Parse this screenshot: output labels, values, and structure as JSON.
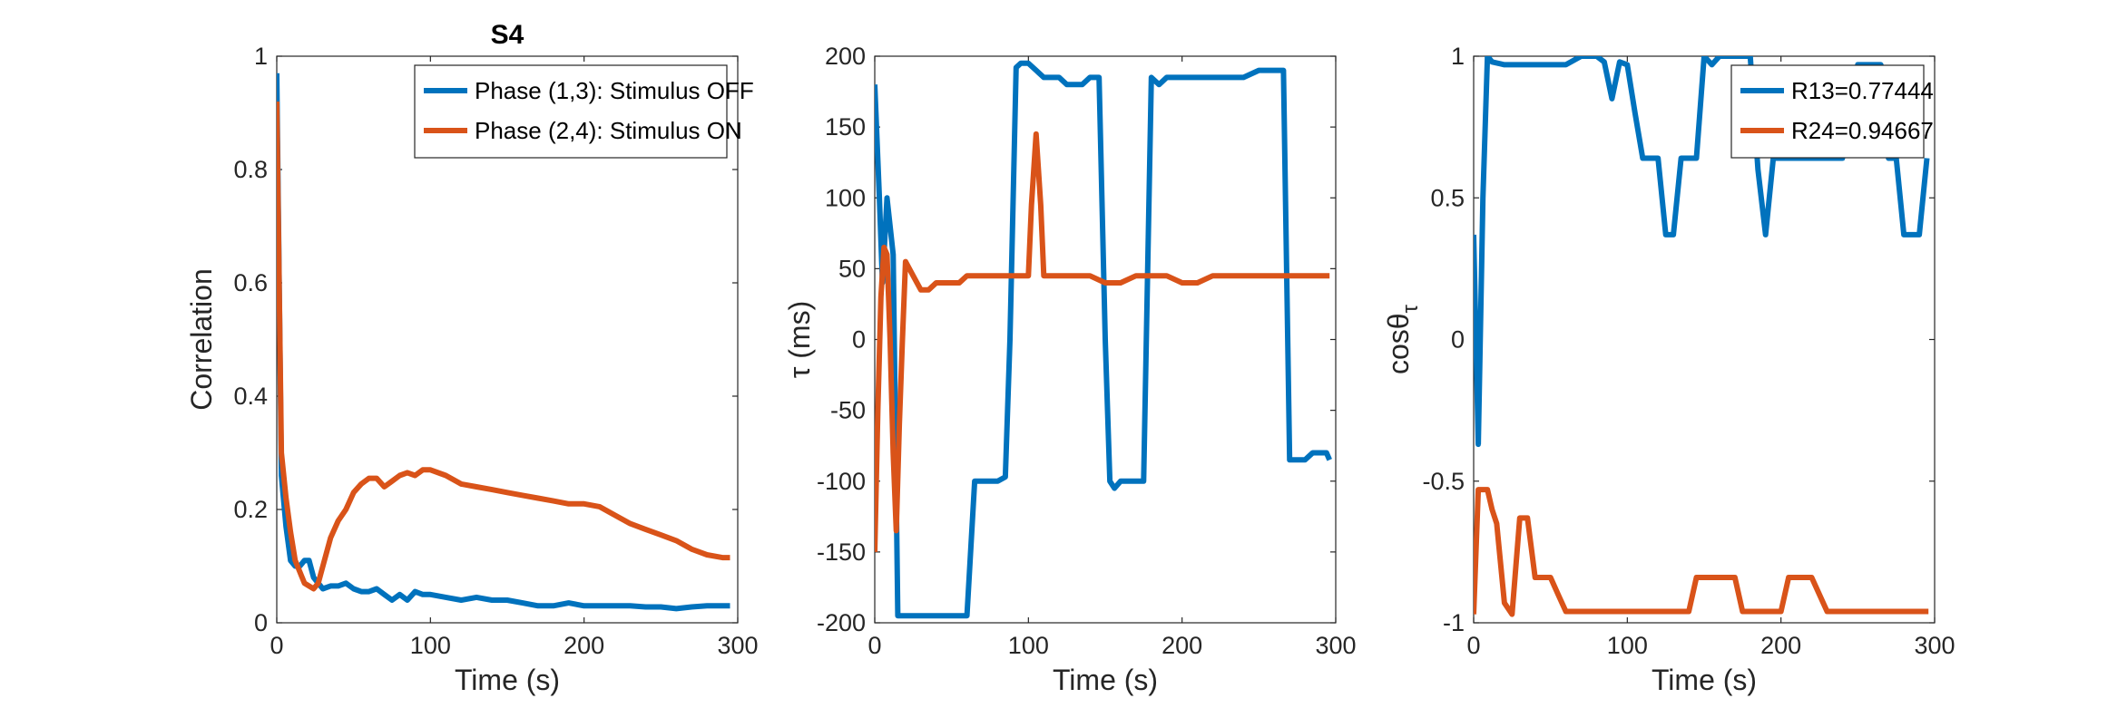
{
  "chart_data": [
    {
      "type": "line",
      "title": "S4",
      "xlabel": "Time (s)",
      "ylabel": "Correlation",
      "xlim": [
        0,
        300
      ],
      "ylim": [
        0,
        1
      ],
      "xticks": [
        0,
        100,
        200,
        300
      ],
      "yticks": [
        0,
        0.2,
        0.4,
        0.6,
        0.8,
        1
      ],
      "ytick_labels": [
        "0",
        "0.2",
        "0.4",
        "0.6",
        "0.8",
        "1"
      ],
      "legend_position": "top-right",
      "series": [
        {
          "name": "Phase (1,3): Stimulus OFF",
          "color": "#0072BD",
          "x": [
            0,
            3,
            6,
            9,
            12,
            15,
            18,
            21,
            24,
            27,
            30,
            35,
            40,
            45,
            50,
            55,
            60,
            65,
            70,
            75,
            80,
            85,
            90,
            95,
            100,
            110,
            120,
            130,
            140,
            150,
            160,
            170,
            180,
            190,
            200,
            210,
            220,
            230,
            240,
            250,
            260,
            270,
            280,
            290,
            295
          ],
          "y": [
            0.97,
            0.26,
            0.17,
            0.11,
            0.1,
            0.1,
            0.11,
            0.11,
            0.08,
            0.07,
            0.06,
            0.065,
            0.065,
            0.07,
            0.06,
            0.055,
            0.055,
            0.06,
            0.05,
            0.04,
            0.05,
            0.04,
            0.055,
            0.05,
            0.05,
            0.045,
            0.04,
            0.045,
            0.04,
            0.04,
            0.035,
            0.03,
            0.03,
            0.035,
            0.03,
            0.03,
            0.03,
            0.03,
            0.028,
            0.028,
            0.025,
            0.028,
            0.03,
            0.03,
            0.03
          ]
        },
        {
          "name": "Phase (2,4): Stimulus ON",
          "color": "#D95319",
          "x": [
            0,
            3,
            6,
            9,
            12,
            15,
            18,
            21,
            24,
            27,
            30,
            35,
            40,
            45,
            50,
            55,
            60,
            65,
            70,
            75,
            80,
            85,
            90,
            95,
            100,
            110,
            120,
            130,
            140,
            150,
            160,
            170,
            180,
            190,
            200,
            210,
            220,
            230,
            240,
            250,
            260,
            270,
            280,
            290,
            295
          ],
          "y": [
            0.92,
            0.3,
            0.22,
            0.16,
            0.11,
            0.09,
            0.07,
            0.065,
            0.06,
            0.07,
            0.1,
            0.15,
            0.18,
            0.2,
            0.23,
            0.245,
            0.255,
            0.255,
            0.24,
            0.25,
            0.26,
            0.265,
            0.26,
            0.27,
            0.27,
            0.26,
            0.245,
            0.24,
            0.235,
            0.23,
            0.225,
            0.22,
            0.215,
            0.21,
            0.21,
            0.205,
            0.19,
            0.175,
            0.165,
            0.155,
            0.145,
            0.13,
            0.12,
            0.115,
            0.115
          ]
        }
      ]
    },
    {
      "type": "line",
      "xlabel": "Time (s)",
      "ylabel": "τ (ms)",
      "xlim": [
        0,
        300
      ],
      "ylim": [
        -200,
        200
      ],
      "xticks": [
        0,
        100,
        200,
        300
      ],
      "yticks": [
        -200,
        -150,
        -100,
        -50,
        0,
        50,
        100,
        150,
        200
      ],
      "ytick_labels": [
        "-200",
        "-150",
        "-100",
        "-50",
        "0",
        "50",
        "100",
        "150",
        "200"
      ],
      "series": [
        {
          "color": "#0072BD",
          "x": [
            0,
            3,
            5,
            8,
            12,
            15,
            18,
            20,
            25,
            30,
            40,
            50,
            60,
            65,
            70,
            80,
            85,
            88,
            92,
            95,
            100,
            105,
            110,
            115,
            120,
            125,
            130,
            135,
            140,
            143,
            146,
            150,
            153,
            156,
            160,
            165,
            170,
            175,
            180,
            185,
            190,
            200,
            210,
            220,
            230,
            240,
            250,
            260,
            263,
            266,
            270,
            275,
            280,
            285,
            290,
            294,
            296
          ],
          "y": [
            180,
            100,
            40,
            100,
            60,
            -195,
            -195,
            -195,
            -195,
            -195,
            -195,
            -195,
            -195,
            -100,
            -100,
            -100,
            -97,
            0,
            192,
            195,
            195,
            190,
            185,
            185,
            185,
            180,
            180,
            180,
            185,
            185,
            185,
            0,
            -100,
            -105,
            -100,
            -100,
            -100,
            -100,
            185,
            180,
            185,
            185,
            185,
            185,
            185,
            185,
            190,
            190,
            190,
            190,
            -85,
            -85,
            -85,
            -80,
            -80,
            -80,
            -85
          ]
        },
        {
          "color": "#D95319",
          "x": [
            0,
            2,
            4,
            6,
            8,
            10,
            12,
            14,
            16,
            18,
            20,
            25,
            30,
            35,
            40,
            50,
            55,
            60,
            70,
            80,
            90,
            95,
            100,
            102,
            105,
            108,
            110,
            120,
            130,
            140,
            150,
            160,
            170,
            180,
            190,
            200,
            210,
            220,
            230,
            240,
            250,
            260,
            270,
            280,
            290,
            296
          ],
          "y": [
            -150,
            -50,
            30,
            65,
            60,
            0,
            -80,
            -135,
            -60,
            0,
            55,
            45,
            35,
            35,
            40,
            40,
            40,
            45,
            45,
            45,
            45,
            45,
            45,
            95,
            145,
            95,
            45,
            45,
            45,
            45,
            40,
            40,
            45,
            45,
            45,
            40,
            40,
            45,
            45,
            45,
            45,
            45,
            45,
            45,
            45,
            45
          ]
        }
      ]
    },
    {
      "type": "line",
      "xlabel": "Time (s)",
      "ylabel": "cosθ",
      "ylabel_subscript": "τ",
      "xlim": [
        0,
        300
      ],
      "ylim": [
        -1,
        1
      ],
      "xticks": [
        0,
        100,
        200,
        300
      ],
      "yticks": [
        -1,
        -0.5,
        0,
        0.5,
        1
      ],
      "ytick_labels": [
        "-1",
        "-0.5",
        "0",
        "0.5",
        "1"
      ],
      "legend_position": "top-right",
      "series": [
        {
          "name": "R13=0.77444",
          "color": "#0072BD",
          "x": [
            0,
            3,
            6,
            9,
            12,
            20,
            30,
            40,
            50,
            60,
            70,
            80,
            85,
            90,
            95,
            100,
            105,
            110,
            115,
            120,
            125,
            130,
            135,
            140,
            145,
            150,
            155,
            160,
            165,
            170,
            180,
            185,
            190,
            195,
            200,
            210,
            220,
            230,
            240,
            250,
            255,
            260,
            265,
            270,
            275,
            280,
            285,
            290,
            295
          ],
          "y": [
            0.37,
            -0.37,
            0.5,
            1.0,
            0.98,
            0.97,
            0.97,
            0.97,
            0.97,
            0.97,
            1.0,
            1.0,
            0.98,
            0.85,
            0.98,
            0.97,
            0.8,
            0.64,
            0.64,
            0.64,
            0.37,
            0.37,
            0.64,
            0.64,
            0.64,
            1.0,
            0.97,
            1.0,
            1.0,
            1.0,
            1.0,
            0.6,
            0.37,
            0.64,
            0.64,
            0.64,
            0.64,
            0.64,
            0.64,
            0.97,
            0.97,
            0.97,
            0.97,
            0.64,
            0.64,
            0.37,
            0.37,
            0.37,
            0.64
          ]
        },
        {
          "name": "R24=0.94667",
          "color": "#D95319",
          "x": [
            0,
            3,
            6,
            9,
            12,
            15,
            20,
            25,
            30,
            35,
            40,
            45,
            50,
            55,
            60,
            70,
            80,
            90,
            100,
            110,
            120,
            130,
            140,
            145,
            150,
            160,
            170,
            175,
            180,
            190,
            200,
            205,
            210,
            215,
            220,
            230,
            240,
            250,
            260,
            270,
            280,
            290,
            296
          ],
          "y": [
            -0.97,
            -0.53,
            -0.53,
            -0.53,
            -0.6,
            -0.65,
            -0.93,
            -0.97,
            -0.63,
            -0.63,
            -0.84,
            -0.84,
            -0.84,
            -0.9,
            -0.96,
            -0.96,
            -0.96,
            -0.96,
            -0.96,
            -0.96,
            -0.96,
            -0.96,
            -0.96,
            -0.84,
            -0.84,
            -0.84,
            -0.84,
            -0.96,
            -0.96,
            -0.96,
            -0.96,
            -0.84,
            -0.84,
            -0.84,
            -0.84,
            -0.96,
            -0.96,
            -0.96,
            -0.96,
            -0.96,
            -0.96,
            -0.96,
            -0.96
          ]
        }
      ]
    }
  ]
}
